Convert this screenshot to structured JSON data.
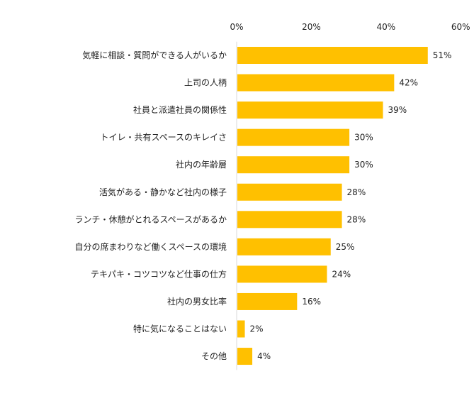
{
  "colors": {
    "bar": "#FFC000",
    "axis": "#d9d9d9",
    "text": "#222222"
  },
  "chart_data": {
    "type": "bar",
    "orientation": "horizontal",
    "title": "",
    "xlabel": "",
    "ylabel": "",
    "xlim": [
      0,
      60
    ],
    "ticks": [
      0,
      20,
      40,
      60
    ],
    "tick_labels": [
      "0%",
      "20%",
      "40%",
      "60%"
    ],
    "grid": false,
    "categories": [
      "気軽に相談・質問ができる人がいるか",
      "上司の人柄",
      "社員と派遣社員の関係性",
      "トイレ・共有スペースのキレイさ",
      "社内の年齢層",
      "活気がある・静かなど社内の様子",
      "ランチ・休憩がとれるスペースがあるか",
      "自分の席まわりなど働くスペースの環境",
      "テキパキ・コツコツなど仕事の仕方",
      "社内の男女比率",
      "特に気になることはない",
      "その他"
    ],
    "values": [
      51,
      42,
      39,
      30,
      30,
      28,
      28,
      25,
      24,
      16,
      2,
      4
    ],
    "value_labels": [
      "51%",
      "42%",
      "39%",
      "30%",
      "30%",
      "28%",
      "28%",
      "25%",
      "24%",
      "16%",
      "2%",
      "4%"
    ]
  }
}
